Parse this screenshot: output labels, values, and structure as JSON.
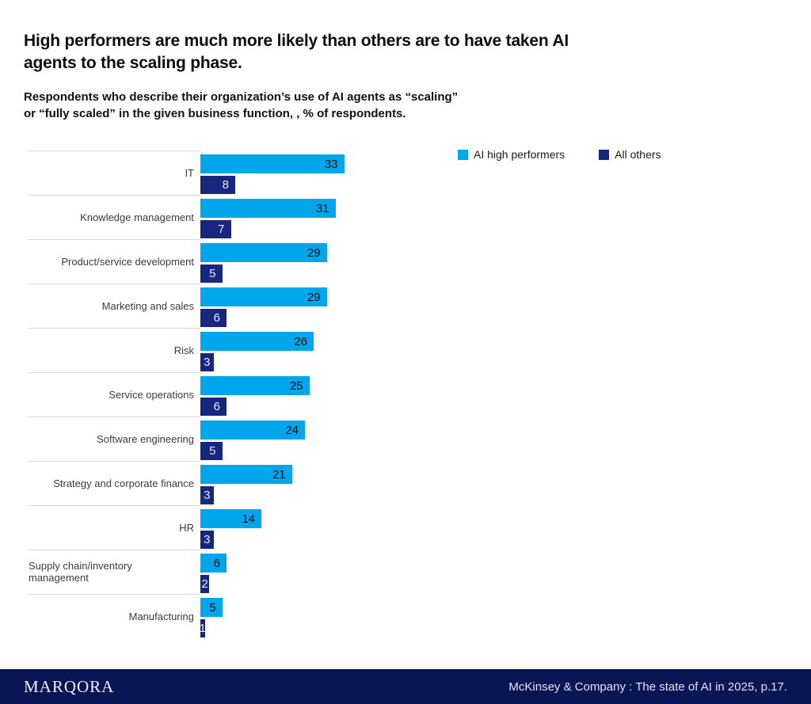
{
  "header": {
    "title_lines": [
      "High performers are much more likely than others are to have taken AI",
      "agents to the scaling phase."
    ],
    "subtitle_lines": [
      "Respondents who describe their organization’s use of AI agents as “scaling”",
      "or “fully scaled” in the given business function, , % of respondents."
    ]
  },
  "legend": [
    {
      "label": "AI high performers",
      "color": "#00A6EC"
    },
    {
      "label": "All others",
      "color": "#17267E"
    }
  ],
  "chart_data": {
    "type": "bar",
    "orientation": "horizontal",
    "title": "High performers are much more likely than others are to have taken AI agents to the scaling phase.",
    "subtitle": "Respondents who describe their organization’s use of AI agents as “scaling” or “fully scaled” in the given business function, , % of respondents.",
    "categories": [
      "IT",
      "Knowledge management",
      "Product/service development",
      "Marketing and sales",
      "Risk",
      "Service operations",
      "Software engineering",
      "Strategy and corporate finance",
      "HR",
      "Supply chain/inventory management",
      "Manufacturing"
    ],
    "series": [
      {
        "name": "AI high performers",
        "color": "#00A6EC",
        "values": [
          33,
          31,
          29,
          29,
          26,
          25,
          24,
          21,
          14,
          6,
          5
        ]
      },
      {
        "name": "All others",
        "color": "#17267E",
        "values": [
          8,
          7,
          5,
          6,
          3,
          6,
          5,
          3,
          3,
          2,
          1
        ]
      }
    ],
    "value_unit": "% of respondents",
    "xlim": [
      0,
      35
    ],
    "grid": false,
    "legend_position": "top-right",
    "value_labels": "inside-end"
  },
  "footer": {
    "brand": "MARQORA",
    "source": "McKinsey & Company : The state of AI in 2025, p.17.",
    "background": "#0A1556"
  }
}
